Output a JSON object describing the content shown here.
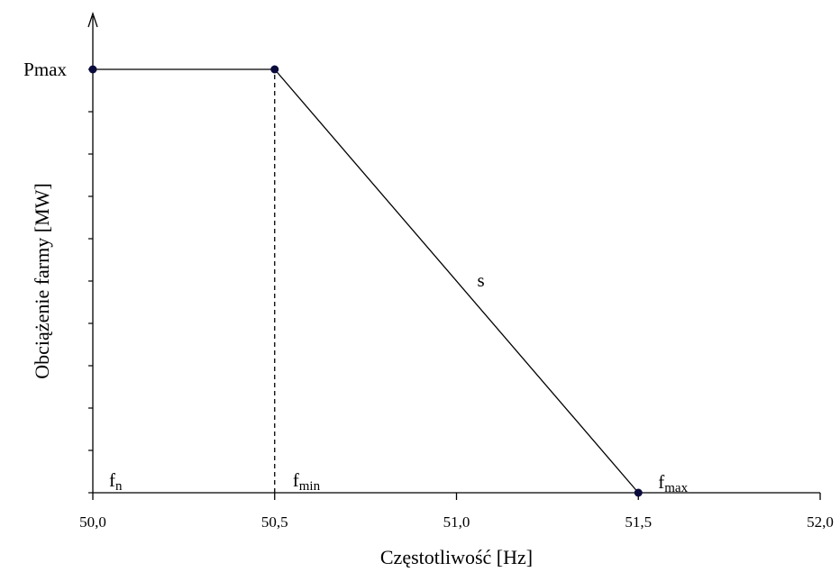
{
  "chart_data": {
    "type": "line",
    "title": "",
    "xlabel": "Częstotliwość [Hz]",
    "ylabel": "Obciążenie farmy [MW]",
    "xlim": [
      50.0,
      52.0
    ],
    "x_ticks": [
      50.0,
      50.5,
      51.0,
      51.5,
      52.0
    ],
    "x_tick_labels": [
      "50,0",
      "50,5",
      "51,0",
      "51,5",
      "52,0"
    ],
    "ylim": [
      0,
      1
    ],
    "y_tick_labels": [
      "Pmax"
    ],
    "y_minor_tick_count": 10,
    "grid": false,
    "legend": "none",
    "series": [
      {
        "points": [
          {
            "x": 50.0,
            "y": 1
          },
          {
            "x": 50.5,
            "y": 1
          },
          {
            "x": 51.5,
            "y": 0
          }
        ]
      }
    ],
    "reference_lines": [
      {
        "x": 50.5,
        "from_y": 0,
        "to_y": 1,
        "style": "dashed"
      }
    ],
    "annotations": [
      {
        "main": "f",
        "sub": "n",
        "x": 50.0
      },
      {
        "main": "f",
        "sub": "min",
        "x": 50.5
      },
      {
        "main": "f",
        "sub": "max",
        "x": 51.5
      },
      {
        "main": "s",
        "sub": "",
        "x": 51.0
      }
    ],
    "colors": {
      "line": "#000000",
      "marker": "#0a0a3c",
      "axis": "#000000"
    }
  }
}
